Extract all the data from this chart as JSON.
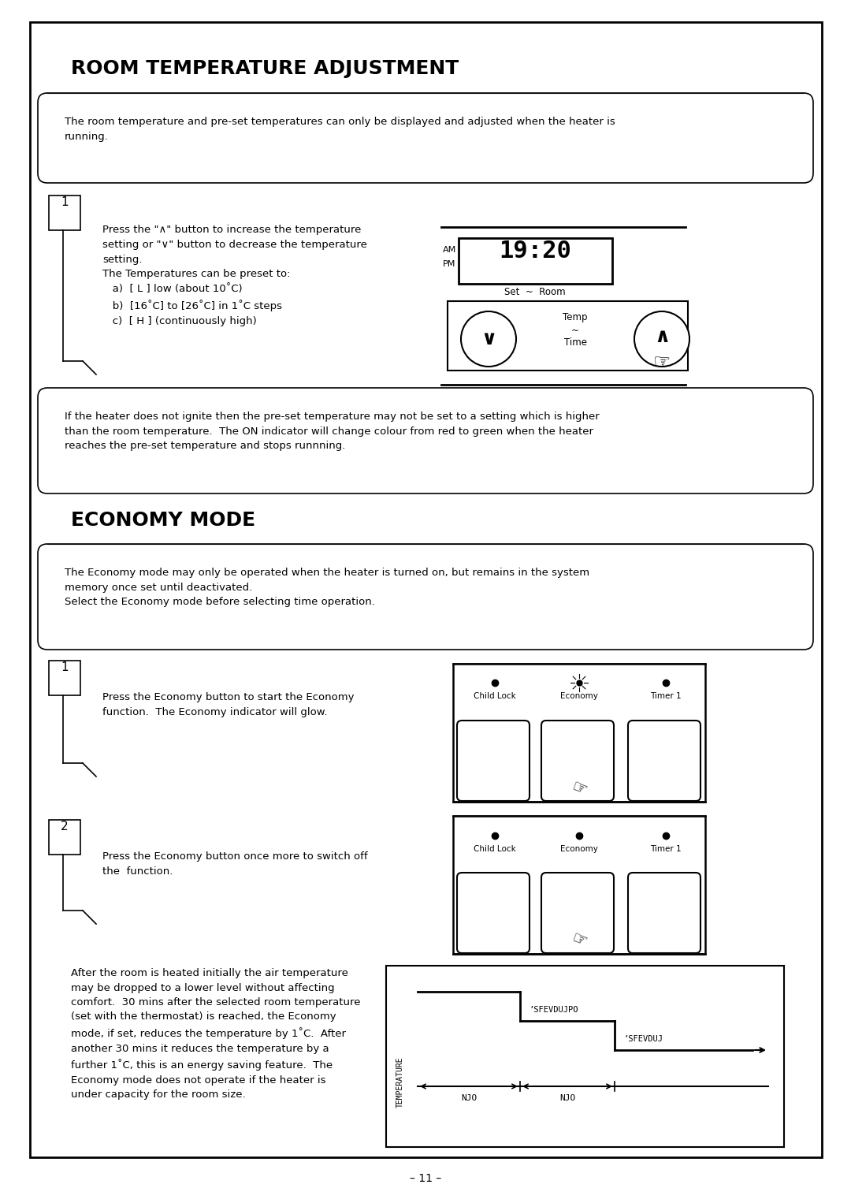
{
  "title": "ROOM TEMPERATURE ADJUSTMENT",
  "section2_title": "ECONOMY MODE",
  "page_number": "– 11 –",
  "bg_color": "#ffffff",
  "note1": "The room temperature and pre-set temperatures can only be displayed and adjusted when the heater is\nrunning.",
  "step1_text": "Press the \"∧\" button to increase the temperature\nsetting or \"∨\" button to decrease the temperature\nsetting.\nThe Temperatures can be preset to:\n   a)  [ L ] low (about 10˚C)\n   b)  [16˚C] to [26˚C] in 1˚C steps\n   c)  [ H ] (continuously high)",
  "note2": "If the heater does not ignite then the pre-set temperature may not be set to a setting which is higher\nthan the room temperature.  The ON indicator will change colour from red to green when the heater\nreaches the pre-set temperature and stops runnning.",
  "note3": "The Economy mode may only be operated when the heater is turned on, but remains in the system\nmemory once set until deactivated.\nSelect the Economy mode before selecting time operation.",
  "econ_step1": "Press the Economy button to start the Economy\nfunction.  The Economy indicator will glow.",
  "econ_step2": "Press the Economy button once more to switch off\nthe  function.",
  "econ_desc": "After the room is heated initially the air temperature\nmay be dropped to a lower level without affecting\ncomfort.  30 mins after the selected room temperature\n(set with the thermostat) is reached, the Economy\nmode, if set, reduces the temperature by 1˚C.  After\nanother 30 mins it reduces the temperature by a\nfurther 1˚C, this is an energy saving feature.  The\nEconomy mode does not operate if the heater is\nunder capacity for the room size.",
  "display_time": "19:20",
  "child_lock": "Child Lock",
  "economy": "Economy",
  "timer1": "Timer 1",
  "set_room": "Set  ~  Room",
  "temp_time": "Temp\n~\nTime",
  "reduction1": "ʼSFEVDUJPO",
  "reduction2": "ʼSFEVDUJ",
  "njo": "NJO"
}
